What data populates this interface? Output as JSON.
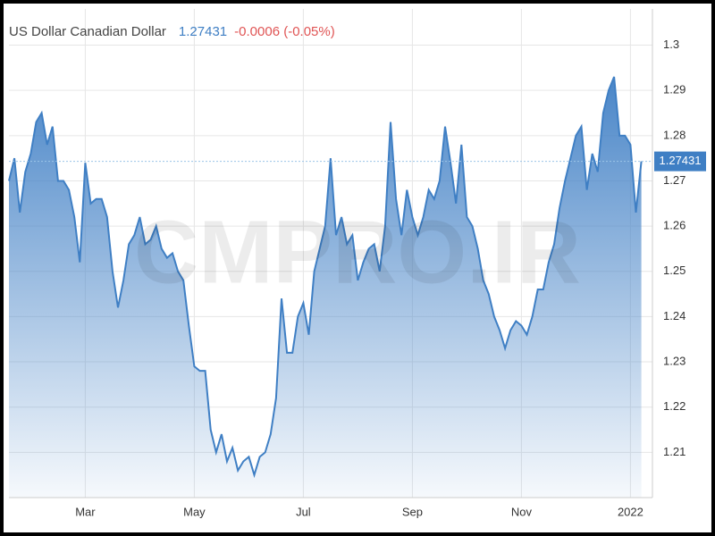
{
  "chart_data": {
    "type": "area",
    "title": "US Dollar Canadian Dollar",
    "change": "-0.0006 (-0.05%)",
    "watermark": "CMPRO.IR",
    "categories": [
      null,
      null,
      null,
      null,
      null,
      null,
      null,
      null,
      null,
      null,
      null,
      null,
      null,
      null,
      "Mar",
      null,
      null,
      null,
      null,
      null,
      null,
      null,
      null,
      null,
      null,
      null,
      null,
      null,
      null,
      null,
      null,
      null,
      null,
      null,
      "May",
      null,
      null,
      null,
      null,
      null,
      null,
      null,
      null,
      null,
      null,
      null,
      null,
      null,
      null,
      null,
      null,
      null,
      null,
      null,
      "Jul",
      null,
      null,
      null,
      null,
      null,
      null,
      null,
      null,
      null,
      null,
      null,
      null,
      null,
      null,
      null,
      null,
      null,
      null,
      null,
      "Sep",
      null,
      null,
      null,
      null,
      null,
      null,
      null,
      null,
      null,
      null,
      null,
      null,
      null,
      null,
      null,
      null,
      null,
      null,
      null,
      "Nov",
      null,
      null,
      null,
      null,
      null,
      null,
      null,
      null,
      null,
      null,
      null,
      null,
      null,
      null,
      null,
      null,
      null,
      null,
      null,
      "2022",
      null,
      null
    ],
    "series": [
      {
        "name": "US Dollar Canadian Dollar",
        "color": "#3f7fc4",
        "values": [
          1.27,
          1.275,
          1.263,
          1.272,
          1.276,
          1.283,
          1.285,
          1.278,
          1.282,
          1.27,
          1.27,
          1.268,
          1.262,
          1.252,
          1.274,
          1.265,
          1.266,
          1.266,
          1.262,
          1.25,
          1.242,
          1.248,
          1.256,
          1.258,
          1.262,
          1.256,
          1.257,
          1.26,
          1.255,
          1.253,
          1.254,
          1.25,
          1.248,
          1.238,
          1.229,
          1.228,
          1.228,
          1.215,
          1.21,
          1.214,
          1.208,
          1.211,
          1.206,
          1.208,
          1.209,
          1.205,
          1.209,
          1.21,
          1.214,
          1.222,
          1.244,
          1.232,
          1.232,
          1.24,
          1.243,
          1.236,
          1.25,
          1.255,
          1.26,
          1.275,
          1.258,
          1.262,
          1.256,
          1.258,
          1.248,
          1.252,
          1.255,
          1.256,
          1.25,
          1.26,
          1.283,
          1.266,
          1.258,
          1.268,
          1.262,
          1.258,
          1.262,
          1.268,
          1.266,
          1.27,
          1.282,
          1.274,
          1.265,
          1.278,
          1.262,
          1.26,
          1.255,
          1.248,
          1.245,
          1.24,
          1.237,
          1.233,
          1.237,
          1.239,
          1.238,
          1.236,
          1.24,
          1.246,
          1.246,
          1.252,
          1.256,
          1.264,
          1.27,
          1.275,
          1.28,
          1.282,
          1.268,
          1.276,
          1.272,
          1.285,
          1.29,
          1.293,
          1.28,
          1.28,
          1.278,
          1.263,
          1.27431
        ]
      }
    ],
    "ylim": [
      1.2,
      1.308
    ],
    "yticks": [
      1.21,
      1.22,
      1.23,
      1.24,
      1.25,
      1.26,
      1.27,
      1.28,
      1.29,
      1.3
    ],
    "grid": true
  }
}
